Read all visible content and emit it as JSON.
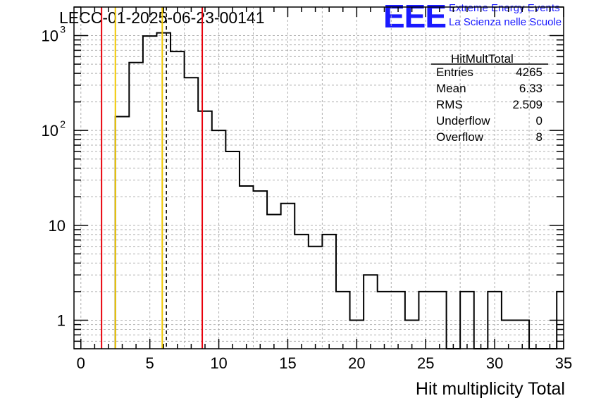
{
  "header": {
    "run_title": "LECC-01-2025-06-23-00141",
    "logo_text": "EEE",
    "logo_line1": "Extreme Energy Events",
    "logo_line2": "La Scienza nelle Scuole"
  },
  "stats": {
    "title": "HitMultTotal",
    "rows": [
      {
        "label": "Entries",
        "value": "4265"
      },
      {
        "label": "Mean",
        "value": "6.33"
      },
      {
        "label": "RMS",
        "value": "2.509"
      },
      {
        "label": "Underflow",
        "value": "0"
      },
      {
        "label": "Overflow",
        "value": "8"
      }
    ]
  },
  "colors": {
    "histogram": "#000000",
    "red_line": "#e8000b",
    "yellow_line": "#f0c800",
    "grid": "#b0b0b0"
  },
  "chart_data": {
    "type": "histogram",
    "xlabel": "Hit multiplicity Total",
    "ylabel": "",
    "xlim": [
      -0.5,
      35
    ],
    "ylim": [
      0.5,
      2000
    ],
    "log_y": true,
    "grid": true,
    "x_ticks": [
      "0",
      "5",
      "10",
      "15",
      "20",
      "25",
      "30",
      "35"
    ],
    "y_ticks": [
      "1",
      "10",
      "10^2",
      "10^3"
    ],
    "bin_width": 1,
    "bin_low_edges": [
      2.5,
      3.5,
      4.5,
      5.5,
      6.5,
      7.5,
      8.5,
      9.5,
      10.5,
      11.5,
      12.5,
      13.5,
      14.5,
      15.5,
      16.5,
      17.5,
      18.5,
      19.5,
      20.5,
      21.5,
      22.5,
      23.5,
      24.5,
      25.5,
      26.5,
      27.5,
      28.5,
      29.5,
      30.5,
      31.5,
      32.5,
      33.5,
      34.5
    ],
    "counts": [
      140,
      520,
      990,
      1070,
      680,
      360,
      160,
      100,
      60,
      26,
      23,
      13,
      17,
      8,
      6,
      8,
      2,
      1,
      3,
      2,
      2,
      1,
      2,
      2,
      0,
      2,
      0,
      2,
      1,
      1,
      0,
      0,
      2
    ],
    "vertical_lines": [
      {
        "x": 1.5,
        "color": "red",
        "style": "solid"
      },
      {
        "x": 2.5,
        "color": "yellow",
        "style": "solid"
      },
      {
        "x": 5.9,
        "color": "yellow",
        "style": "solid"
      },
      {
        "x": 6.2,
        "color": "black",
        "style": "dashed"
      },
      {
        "x": 8.8,
        "color": "red",
        "style": "solid"
      }
    ]
  }
}
